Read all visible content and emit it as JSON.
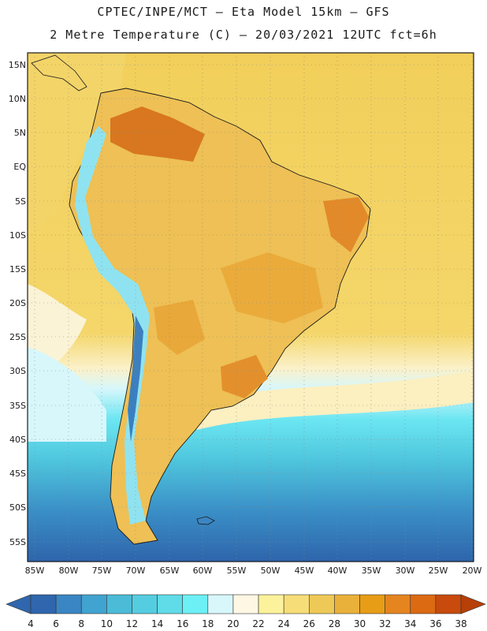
{
  "header": {
    "line1": "CPTEC/INPE/MCT –  Eta Model 15km – GFS",
    "line2": "2 Metre Temperature (C) – 20/03/2021 12UTC fct=6h"
  },
  "lat_labels": [
    "15N",
    "10N",
    "5N",
    "EQ",
    "5S",
    "10S",
    "15S",
    "20S",
    "25S",
    "30S",
    "35S",
    "40S",
    "45S",
    "50S",
    "55S"
  ],
  "lon_labels": [
    "85W",
    "80W",
    "75W",
    "70W",
    "65W",
    "60W",
    "55W",
    "50W",
    "45W",
    "40W",
    "35W",
    "30W",
    "25W",
    "20W"
  ],
  "colorbar": {
    "values": [
      "4",
      "6",
      "8",
      "10",
      "12",
      "14",
      "16",
      "18",
      "20",
      "22",
      "24",
      "26",
      "28",
      "30",
      "32",
      "34",
      "36",
      "38"
    ],
    "colors": [
      "#2f66ad",
      "#3a86c4",
      "#41a3cf",
      "#4bbbd8",
      "#55cde0",
      "#5fdce8",
      "#6cf0f5",
      "#d7f7fb",
      "#fdf7e3",
      "#fcf29b",
      "#f6dd77",
      "#efc957",
      "#eab13a",
      "#e89d16",
      "#e58520",
      "#dc6a12",
      "#c84a0c"
    ]
  }
}
